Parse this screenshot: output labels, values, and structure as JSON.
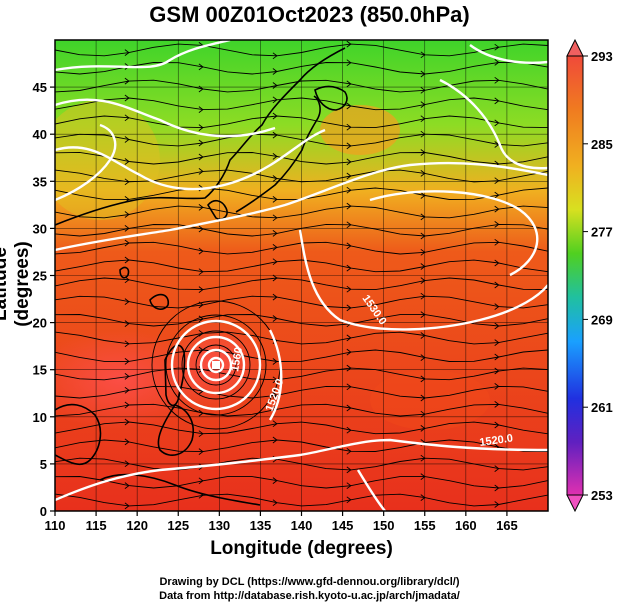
{
  "title": "GSM 00Z01Oct2023 (850.0hPa)",
  "ylabel": "Latitude (degrees)",
  "xlabel": "Longitude (degrees)",
  "footer": {
    "line1": "Drawing by DCL (https://www.gfd-dennou.org/library/dcl/)",
    "line2": "Data from http://database.rish.kyoto-u.ac.jp/arch/jmadata/"
  },
  "map": {
    "lon_range": [
      110,
      170
    ],
    "lat_range": [
      0,
      50
    ],
    "x_ticks": [
      "110",
      "115",
      "120",
      "125",
      "130",
      "135",
      "140",
      "145",
      "150",
      "155",
      "160",
      "165"
    ],
    "y_ticks": [
      "0",
      "5",
      "10",
      "15",
      "20",
      "25",
      "30",
      "35",
      "40",
      "45"
    ],
    "colorbar_ticks": [
      "293",
      "285",
      "277",
      "269",
      "261",
      "253"
    ],
    "colorbar_range": [
      253,
      293
    ],
    "contour_labels": [
      "1530.0",
      "1560",
      "1520.0",
      "1520.0"
    ],
    "colors": {
      "warm": "#e8301c",
      "mid": "#f08a20",
      "cool": "#4fcf28",
      "contour": "#ffffff"
    }
  }
}
